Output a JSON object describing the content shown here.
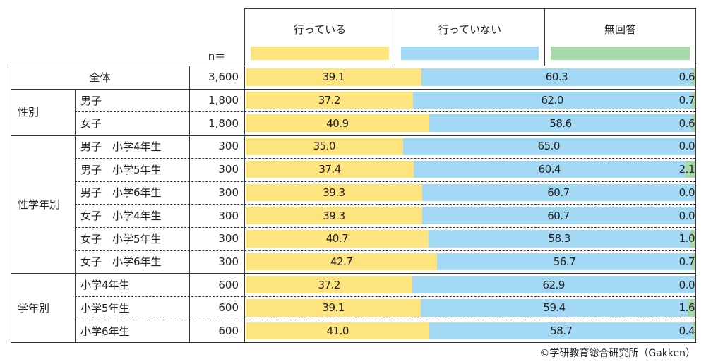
{
  "chart_data": {
    "type": "bar",
    "orientation": "horizontal-stacked-100",
    "n_label": "n＝",
    "legend": [
      {
        "name": "行っている",
        "color": "#fde47f"
      },
      {
        "name": "行っていない",
        "color": "#a3d9f5"
      },
      {
        "name": "無回答",
        "color": "#a8d8a8"
      }
    ],
    "groups": [
      {
        "label": "全体",
        "rows": [
          0
        ]
      },
      {
        "label": "性別",
        "rows": [
          1,
          2
        ]
      },
      {
        "label": "性学年別",
        "rows": [
          3,
          4,
          5,
          6,
          7,
          8
        ]
      },
      {
        "label": "学年別",
        "rows": [
          9,
          10,
          11
        ]
      }
    ],
    "rows": [
      {
        "label": "全体",
        "n": "3,600",
        "values": [
          39.1,
          60.3,
          0.6
        ]
      },
      {
        "label": "男子",
        "n": "1,800",
        "values": [
          37.2,
          62.0,
          0.7
        ]
      },
      {
        "label": "女子",
        "n": "1,800",
        "values": [
          40.9,
          58.6,
          0.6
        ]
      },
      {
        "label": "男子　小学4年生",
        "n": "300",
        "values": [
          35.0,
          65.0,
          0.0
        ]
      },
      {
        "label": "男子　小学5年生",
        "n": "300",
        "values": [
          37.4,
          60.4,
          2.1
        ]
      },
      {
        "label": "男子　小学6年生",
        "n": "300",
        "values": [
          39.3,
          60.7,
          0.0
        ]
      },
      {
        "label": "女子　小学4年生",
        "n": "300",
        "values": [
          39.3,
          60.7,
          0.0
        ]
      },
      {
        "label": "女子　小学5年生",
        "n": "300",
        "values": [
          40.7,
          58.3,
          1.0
        ]
      },
      {
        "label": "女子　小学6年生",
        "n": "300",
        "values": [
          42.7,
          56.7,
          0.7
        ]
      },
      {
        "label": "小学4年生",
        "n": "600",
        "values": [
          37.2,
          62.9,
          0.0
        ]
      },
      {
        "label": "小学5年生",
        "n": "600",
        "values": [
          39.1,
          59.4,
          1.6
        ]
      },
      {
        "label": "小学6年生",
        "n": "600",
        "values": [
          41.0,
          58.7,
          0.4
        ]
      }
    ]
  },
  "source": "©学研教育総合研究所（Gakken）"
}
